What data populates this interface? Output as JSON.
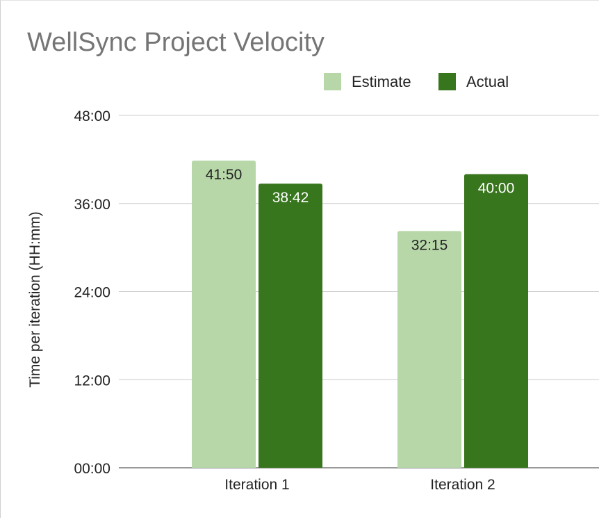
{
  "chart_data": {
    "type": "bar",
    "title": "WellSync Project Velocity",
    "ylabel": "Time per iteration (HH:mm)",
    "xlabel": "",
    "categories": [
      "Iteration 1",
      "Iteration 2"
    ],
    "series": [
      {
        "name": "Estimate",
        "color": "#b7d7a8",
        "label_color": "#222222",
        "values": [
          41.833,
          32.25
        ],
        "labels": [
          "41:50",
          "32:15"
        ]
      },
      {
        "name": "Actual",
        "color": "#38761d",
        "label_color": "#ffffff",
        "values": [
          38.7,
          40.0
        ],
        "labels": [
          "38:42",
          "40:00"
        ]
      }
    ],
    "ylim": [
      0,
      48
    ],
    "yticks": [
      0,
      12,
      24,
      36,
      48
    ],
    "ytick_labels": [
      "00:00",
      "12:00",
      "24:00",
      "36:00",
      "48:00"
    ],
    "grid": true,
    "legend_position": "top-right"
  }
}
